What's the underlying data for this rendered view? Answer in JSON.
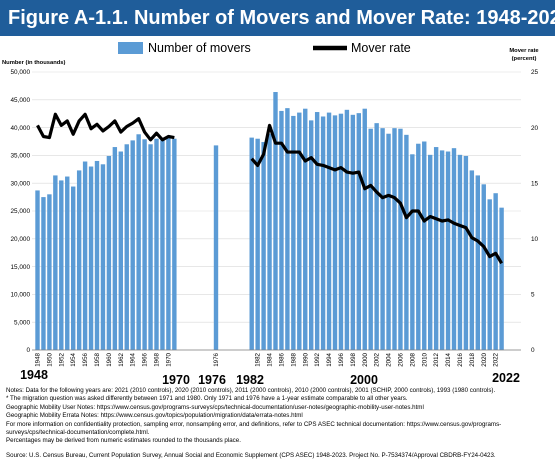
{
  "title": "Figure A-1.1. Number of Movers and Mover Rate: 1948-2023",
  "colors": {
    "title_bg": "#1f5d9a",
    "bars": "#5b9bd5",
    "line": "#000000",
    "grid": "#d9d9d9"
  },
  "chart_data": {
    "type": "bar",
    "left_axis_label": "Number (in thousands)",
    "right_axis_label_line1": "Mover rate",
    "right_axis_label_line2": "(percent)",
    "left_ylim": [
      0,
      50000
    ],
    "right_ylim": [
      0,
      25
    ],
    "left_ticks": [
      "0",
      "5,000",
      "10,000",
      "15,000",
      "20,000",
      "25,000",
      "30,000",
      "35,000",
      "40,000",
      "45,000",
      "50,000"
    ],
    "right_ticks": [
      "0",
      "5",
      "10",
      "15",
      "20",
      "25"
    ],
    "grid": true,
    "legend": {
      "position": "top",
      "bars": "Number of movers",
      "line": "Mover rate"
    },
    "x_tick_labels": [
      "1948",
      "1950",
      "1952",
      "1954",
      "1956",
      "1958",
      "1960",
      "1962",
      "1964",
      "1966",
      "1968",
      "1970",
      "1976",
      "1982",
      "1984",
      "1986",
      "1988",
      "1990",
      "1992",
      "1994",
      "1996",
      "1998",
      "2000",
      "2002",
      "2004",
      "2006",
      "2008",
      "2010",
      "2012",
      "2014",
      "2016",
      "2018",
      "2020",
      "2022"
    ],
    "annotations": [
      "1948",
      "1970",
      "1976",
      "1982",
      "2000",
      "2022"
    ],
    "series": [
      {
        "name": "Number of movers",
        "kind": "bar",
        "x": [
          1948,
          1949,
          1950,
          1951,
          1952,
          1953,
          1954,
          1955,
          1956,
          1957,
          1958,
          1959,
          1960,
          1961,
          1962,
          1963,
          1964,
          1965,
          1966,
          1967,
          1968,
          1969,
          1970,
          1971,
          1976,
          1981,
          1982,
          1983,
          1984,
          1985,
          1986,
          1987,
          1988,
          1989,
          1990,
          1991,
          1992,
          1993,
          1994,
          1995,
          1996,
          1997,
          1998,
          1999,
          2000,
          2001,
          2002,
          2003,
          2004,
          2005,
          2006,
          2007,
          2008,
          2009,
          2010,
          2011,
          2012,
          2013,
          2014,
          2015,
          2016,
          2017,
          2018,
          2019,
          2020,
          2021,
          2022,
          2023
        ],
        "values": [
          28700,
          27500,
          28000,
          31400,
          30500,
          31200,
          29400,
          32300,
          33900,
          33000,
          34000,
          33400,
          34900,
          36500,
          35700,
          37000,
          37700,
          38800,
          37900,
          37000,
          38000,
          37700,
          38100,
          38000,
          36800,
          38200,
          38000,
          37400,
          38900,
          46400,
          43000,
          43500,
          42100,
          42700,
          43400,
          41300,
          42800,
          42000,
          42700,
          42200,
          42500,
          43200,
          42300,
          42600,
          43400,
          39800,
          40800,
          39900,
          38900,
          39900,
          39800,
          38700,
          35200,
          37100,
          37500,
          35100,
          36500,
          35900,
          35700,
          36300,
          35100,
          34900,
          32300,
          31400,
          29800,
          27100,
          28200,
          25600
        ]
      },
      {
        "name": "Mover rate",
        "kind": "line",
        "x": [
          1948,
          1949,
          1950,
          1951,
          1952,
          1953,
          1954,
          1955,
          1956,
          1957,
          1958,
          1959,
          1960,
          1961,
          1962,
          1963,
          1964,
          1965,
          1966,
          1967,
          1968,
          1969,
          1970,
          1971,
          1976,
          1981,
          1982,
          1983,
          1984,
          1985,
          1986,
          1987,
          1988,
          1989,
          1990,
          1991,
          1992,
          1993,
          1994,
          1995,
          1996,
          1997,
          1998,
          1999,
          2000,
          2001,
          2002,
          2003,
          2004,
          2005,
          2006,
          2007,
          2008,
          2009,
          2010,
          2011,
          2012,
          2013,
          2014,
          2015,
          2016,
          2017,
          2018,
          2019,
          2020,
          2021,
          2022,
          2023
        ],
        "values": [
          20.2,
          19.2,
          19.1,
          21.2,
          20.2,
          20.6,
          19.4,
          20.6,
          21.2,
          19.9,
          20.3,
          19.7,
          20.1,
          20.6,
          19.6,
          20.1,
          20.4,
          20.8,
          19.6,
          18.9,
          19.5,
          18.9,
          19.2,
          19.1,
          17.7,
          17.2,
          16.6,
          17.6,
          20.2,
          18.6,
          18.6,
          17.8,
          17.8,
          17.8,
          17.0,
          17.3,
          16.7,
          16.6,
          16.4,
          16.2,
          16.4,
          16.0,
          15.9,
          16.0,
          14.5,
          14.8,
          14.2,
          13.7,
          13.9,
          13.7,
          13.2,
          11.9,
          12.5,
          12.5,
          11.6,
          12.0,
          11.8,
          11.6,
          11.7,
          11.4,
          11.2,
          11.0,
          10.1,
          9.8,
          9.3,
          8.4,
          8.7,
          7.8
        ]
      }
    ]
  },
  "notes": [
    "Notes: Data for the following years are: 2021 (2010 controls), 2020 (2010 controls), 2011 (2000 controls), 2010 (2000 controls), 2001 (SCHIP, 2000 controls), 1993 (1980 controls).",
    "* The migration question was asked differently between 1971 and 1980. Only 1971 and 1976 have a 1-year estimate comparable to all other years.",
    "Geographic Mobility User Notes: https://www.census.gov/programs-surveys/cps/technical-documentation/user-notes/geographic-mobility-user-notes.html",
    "Geographic Mobility Errata Notes: https://www.census.gov/topics/population/migration/data/errata-notes.html",
    "For more information on confidentiality protection, sampling error, nonsampling error, and definitions, refer to CPS ASEC technical documentation: https://www.census.gov/programs-",
    "surveys/cps/technical-documentation/complete.html.",
    "Percentages may be derived from numeric estimates rounded to the thousands place."
  ],
  "source": "Source: U.S. Census Bureau, Current Population Survey, Annual Social and Economic Supplement (CPS ASEC) 1948-2023. Project No. P-7534374/Approval CBDRB-FY24-0423."
}
